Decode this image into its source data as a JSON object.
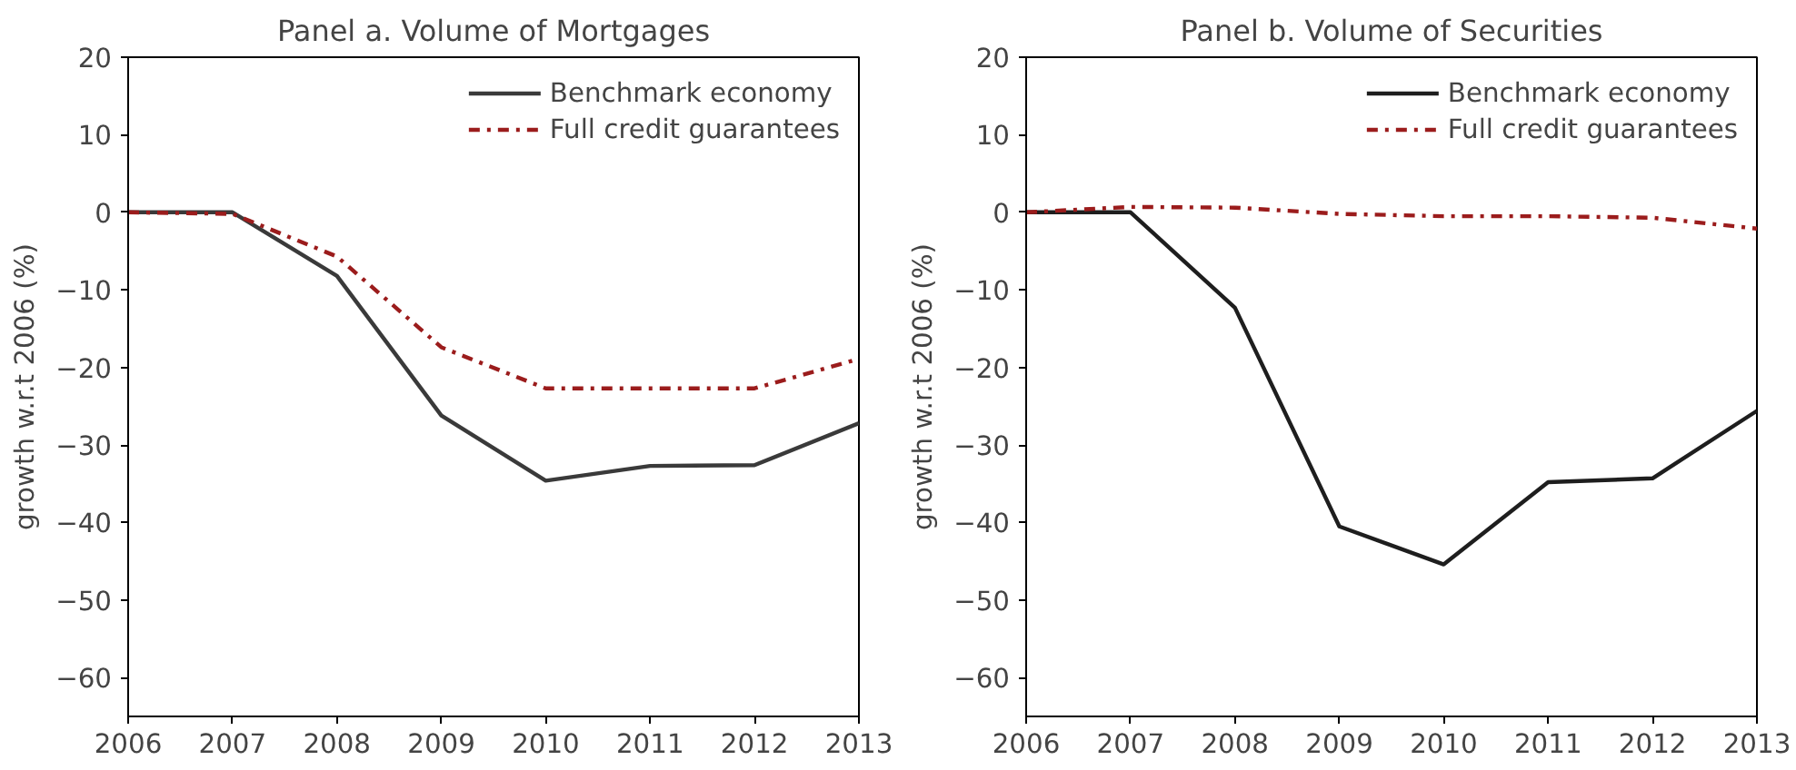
{
  "chart_data": [
    {
      "type": "line",
      "title": "Panel a. Volume of Mortgages",
      "ylabel": "growth w.r.t 2006 (%)",
      "x": [
        2006,
        2007,
        2008,
        2009,
        2010,
        2011,
        2012,
        2013
      ],
      "xlim": [
        2006,
        2013
      ],
      "ylim": [
        -65,
        20
      ],
      "xticks": [
        2006,
        2007,
        2008,
        2009,
        2010,
        2011,
        2012,
        2013
      ],
      "yticks": [
        {
          "value": -60,
          "label": "−60"
        },
        {
          "value": -50,
          "label": "−50"
        },
        {
          "value": -40,
          "label": "−40"
        },
        {
          "value": -30,
          "label": "−30"
        },
        {
          "value": -20,
          "label": "−20"
        },
        {
          "value": -10,
          "label": "−10"
        },
        0,
        10,
        20
      ],
      "grid": false,
      "legend": "top right",
      "series": [
        {
          "name": "Benchmark economy",
          "color": "#3a3a3a",
          "line_style": "solid",
          "values": [
            0,
            0,
            -8.2,
            -26.2,
            -34.6,
            -32.7,
            -32.6,
            -27.2
          ]
        },
        {
          "name": "Full credit guarantees",
          "color": "#9b1c1c",
          "line_style": "dashdot",
          "values": [
            0,
            -0.2,
            -5.7,
            -17.4,
            -22.7,
            -22.7,
            -22.7,
            -18.9
          ]
        }
      ]
    },
    {
      "type": "line",
      "title": "Panel b. Volume of Securities",
      "ylabel": "growth w.r.t 2006 (%)",
      "x": [
        2006,
        2007,
        2008,
        2009,
        2010,
        2011,
        2012,
        2013
      ],
      "xlim": [
        2006,
        2013
      ],
      "ylim": [
        -65,
        20
      ],
      "xticks": [
        2006,
        2007,
        2008,
        2009,
        2010,
        2011,
        2012,
        2013
      ],
      "yticks": [
        {
          "value": -60,
          "label": "−60"
        },
        {
          "value": -50,
          "label": "−50"
        },
        {
          "value": -40,
          "label": "−40"
        },
        {
          "value": -30,
          "label": "−30"
        },
        {
          "value": -20,
          "label": "−20"
        },
        {
          "value": -10,
          "label": "−10"
        },
        0,
        10,
        20
      ],
      "grid": false,
      "legend": "top right",
      "series": [
        {
          "name": "Benchmark economy",
          "color": "#1e1e1e",
          "line_style": "solid",
          "values": [
            0,
            0,
            -12.3,
            -40.5,
            -45.4,
            -34.8,
            -34.3,
            -25.6
          ]
        },
        {
          "name": "Full credit guarantees",
          "color": "#9b1c1c",
          "line_style": "dashdot",
          "values": [
            0,
            0.7,
            0.6,
            -0.2,
            -0.5,
            -0.5,
            -0.7,
            -2.1
          ]
        }
      ]
    }
  ]
}
